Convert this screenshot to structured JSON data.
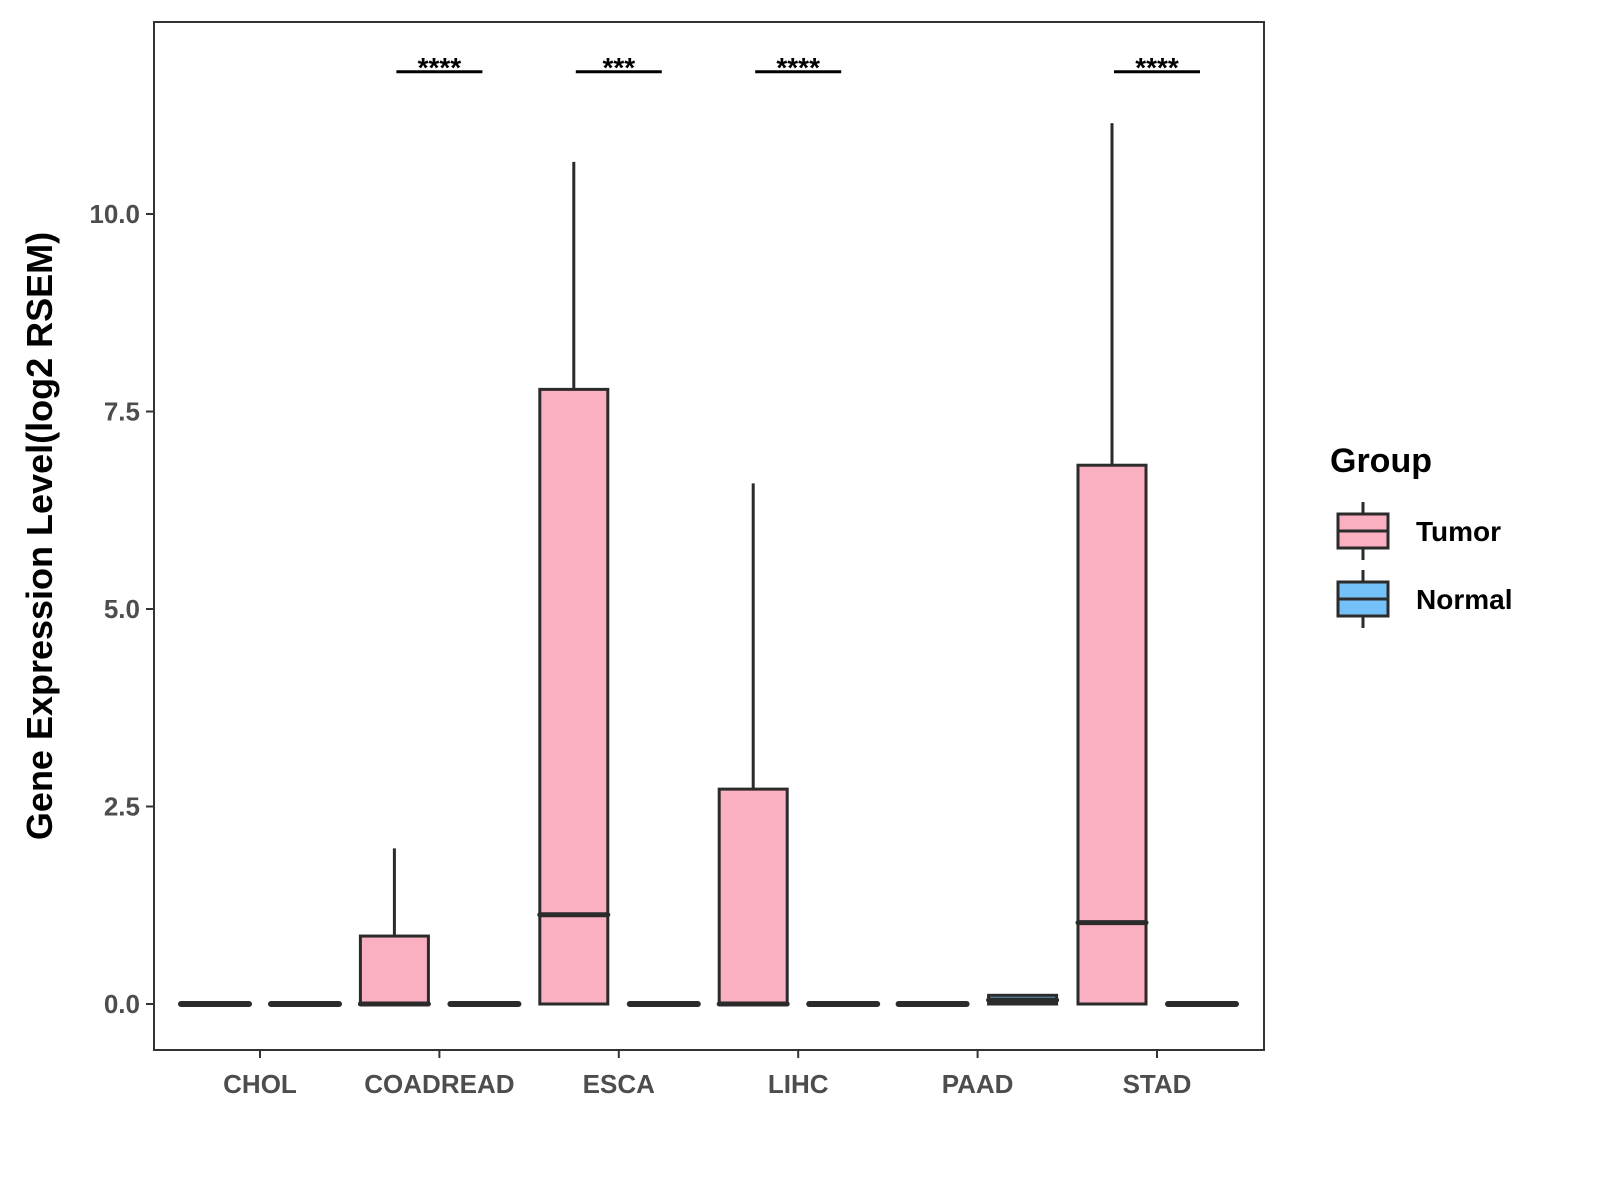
{
  "chart_data": {
    "type": "boxplot",
    "title": "",
    "xlabel": "",
    "ylabel": "Gene Expression Level(log2 RSEM)",
    "ylim": [
      -0.58,
      12.4
    ],
    "yticks": [
      "0.0",
      "2.5",
      "5.0",
      "7.5",
      "10.0"
    ],
    "ytick_values": [
      0,
      2.5,
      5,
      7.5,
      10
    ],
    "categories": [
      "CHOL",
      "COADREAD",
      "ESCA",
      "LIHC",
      "PAAD",
      "STAD"
    ],
    "legend": {
      "title": "Group",
      "position": "right"
    },
    "series": [
      {
        "name": "Tumor",
        "color": "#FBB0C1",
        "boxes": [
          {
            "min": 0,
            "q1": 0,
            "median": 0,
            "q3": 0,
            "max": 0
          },
          {
            "min": 0,
            "q1": 0,
            "median": 0,
            "q3": 0.86,
            "max": 1.97
          },
          {
            "min": 0,
            "q1": 0,
            "median": 1.13,
            "q3": 7.78,
            "max": 10.66
          },
          {
            "min": 0,
            "q1": 0,
            "median": 0,
            "q3": 2.72,
            "max": 6.59
          },
          {
            "min": 0,
            "q1": 0,
            "median": 0,
            "q3": 0,
            "max": 0
          },
          {
            "min": 0,
            "q1": 0,
            "median": 1.03,
            "q3": 6.82,
            "max": 11.15
          }
        ]
      },
      {
        "name": "Normal",
        "color": "#74C1F9",
        "boxes": [
          {
            "min": 0,
            "q1": 0,
            "median": 0,
            "q3": 0,
            "max": 0
          },
          {
            "min": 0,
            "q1": 0,
            "median": 0,
            "q3": 0,
            "max": 0
          },
          {
            "min": 0,
            "q1": 0,
            "median": 0,
            "q3": 0,
            "max": 0
          },
          {
            "min": 0,
            "q1": 0,
            "median": 0,
            "q3": 0,
            "max": 0
          },
          {
            "min": 0,
            "q1": 0,
            "median": 0.05,
            "q3": 0.11,
            "max": 0.11
          },
          {
            "min": 0,
            "q1": 0,
            "median": 0,
            "q3": 0,
            "max": 0
          }
        ]
      }
    ],
    "significance": [
      {
        "category": "COADREAD",
        "label": "****"
      },
      {
        "category": "ESCA",
        "label": "***"
      },
      {
        "category": "LIHC",
        "label": "****"
      },
      {
        "category": "STAD",
        "label": "****"
      }
    ],
    "significance_level": 11.8
  }
}
